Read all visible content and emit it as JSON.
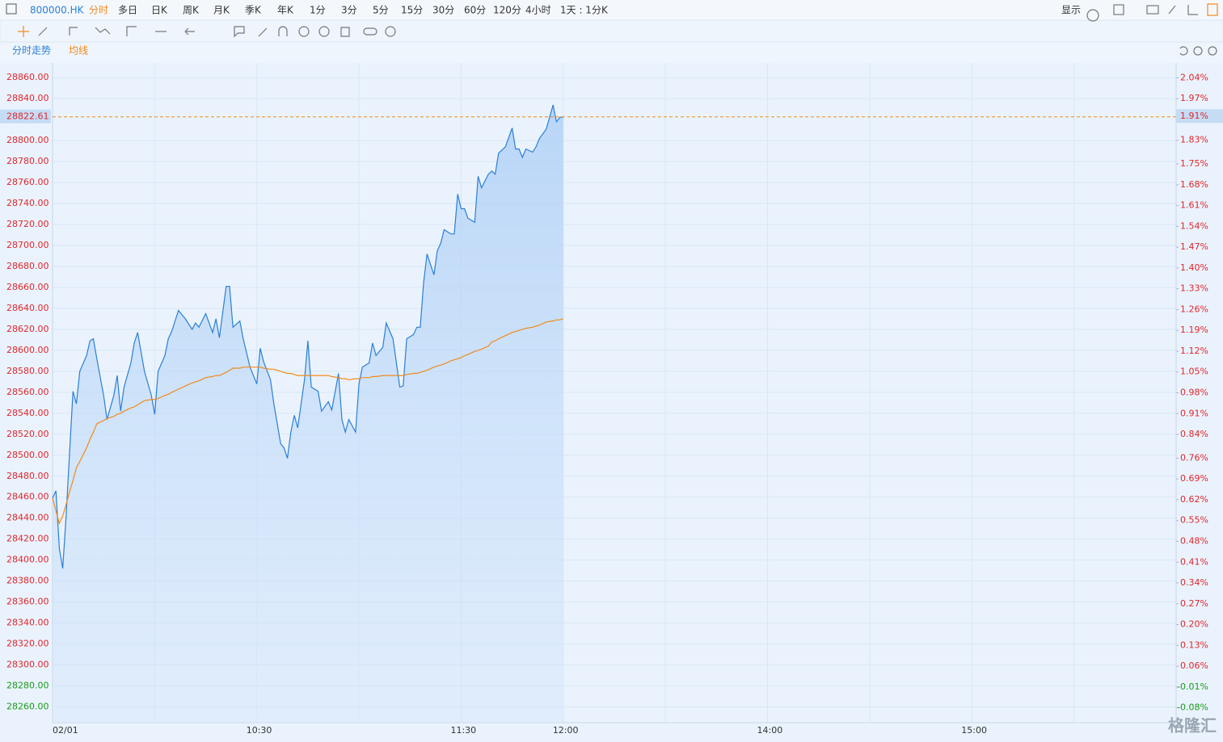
{
  "toolbar": {
    "symbol": "800000.HK",
    "periods": [
      "分时",
      "多日",
      "日K",
      "周K",
      "月K",
      "季K",
      "年K",
      "1分",
      "3分",
      "5分",
      "15分",
      "30分",
      "60分",
      "120分",
      "4小时",
      "1天 : 1分K"
    ],
    "active_color": "#f08a1c",
    "display": "显示"
  },
  "watermark": "格隆汇",
  "chart_data": {
    "type": "line",
    "x": [
      0,
      1,
      2,
      3,
      4,
      5,
      6,
      7,
      8,
      10,
      11,
      12,
      13,
      15,
      16,
      18,
      19,
      20,
      21,
      23,
      24,
      25,
      27,
      29,
      30,
      31,
      33,
      34,
      35,
      37,
      39,
      41,
      42,
      43,
      45,
      47,
      48,
      49,
      51,
      52,
      53,
      55,
      56,
      58,
      60,
      61,
      62,
      64,
      65,
      67,
      68,
      69,
      70,
      71,
      72,
      74,
      75,
      76,
      78,
      79,
      81,
      82,
      84,
      85,
      86,
      87,
      89,
      90,
      91,
      93,
      94,
      95,
      97,
      98,
      100,
      101,
      102,
      103,
      104,
      106,
      107,
      108,
      109,
      110,
      112,
      113,
      114,
      115,
      117,
      118,
      119,
      120,
      121,
      122,
      124,
      125,
      126,
      128,
      129,
      130,
      131,
      133,
      135,
      136,
      137,
      138,
      139,
      141,
      142,
      143,
      145,
      147,
      148,
      149,
      150
    ],
    "series": [
      {
        "name": "分时走势",
        "color": "#2b7fd6",
        "values": [
          28459,
          28466,
          28411,
          28392,
          28442,
          28503,
          28561,
          28549,
          28580,
          28595,
          28609,
          28611,
          28592,
          28557,
          28534,
          28557,
          28576,
          28542,
          28565,
          28588,
          28607,
          28617,
          28580,
          28557,
          28539,
          28580,
          28595,
          28611,
          28618,
          28638,
          28630,
          28620,
          28626,
          28622,
          28635,
          28617,
          28630,
          28612,
          28661,
          28661,
          28622,
          28628,
          28611,
          28584,
          28568,
          28602,
          28589,
          28572,
          28549,
          28511,
          28507,
          28497,
          28522,
          28538,
          28526,
          28572,
          28609,
          28565,
          28561,
          28542,
          28551,
          28543,
          28578,
          28534,
          28522,
          28534,
          28522,
          28568,
          28584,
          28588,
          28607,
          28595,
          28603,
          28626,
          28611,
          28588,
          28565,
          28566,
          28611,
          28615,
          28622,
          28622,
          28665,
          28692,
          28672,
          28695,
          28702,
          28715,
          28711,
          28711,
          28749,
          28735,
          28735,
          28726,
          28722,
          28766,
          28755,
          28768,
          28771,
          28768,
          28788,
          28794,
          28812,
          28792,
          28792,
          28784,
          28792,
          28789,
          28794,
          28802,
          28811,
          28834,
          28818,
          28822,
          28822.61
        ]
      },
      {
        "name": "均线",
        "color": "#f08a1c",
        "values": [
          28459,
          28447,
          28435,
          28442,
          28453,
          28465,
          28476,
          28488,
          28494,
          28507,
          28515,
          28522,
          28530,
          28533,
          28535,
          28537,
          28539,
          28540,
          28542,
          28545,
          28546,
          28548,
          28552,
          28553,
          28553,
          28554,
          28557,
          28558,
          28560,
          28563,
          28566,
          28569,
          28570,
          28571,
          28574,
          28575,
          28576,
          28576,
          28579,
          28581,
          28583,
          28583,
          28584,
          28584,
          28584,
          28584,
          28583,
          28582,
          28582,
          28580,
          28579,
          28578,
          28578,
          28577,
          28576,
          28576,
          28576,
          28576,
          28576,
          28576,
          28576,
          28575,
          28574,
          28573,
          28573,
          28572,
          28573,
          28573,
          28574,
          28574,
          28575,
          28575,
          28576,
          28576,
          28576,
          28576,
          28576,
          28576,
          28577,
          28578,
          28578,
          28579,
          28580,
          28581,
          28584,
          28585,
          28586,
          28587,
          28590,
          28591,
          28592,
          28593,
          28595,
          28596,
          28599,
          28600,
          28601,
          28604,
          28608,
          28609,
          28611,
          28614,
          28617,
          28618,
          28619,
          28620,
          28621,
          28622,
          28623,
          28624,
          28627,
          28628,
          28629,
          28629,
          28630
        ]
      }
    ],
    "xlim": [
      0,
      330
    ],
    "xticks": [
      {
        "value": 0,
        "label": "02/01"
      },
      {
        "value": 30,
        "label": null
      },
      {
        "value": 60,
        "label": "10:30"
      },
      {
        "value": 90,
        "label": null
      },
      {
        "value": 120,
        "label": "11:30"
      },
      {
        "value": 150,
        "label": "12:00"
      },
      {
        "value": 180,
        "label": null
      },
      {
        "value": 210,
        "label": "14:00"
      },
      {
        "value": 240,
        "label": null
      },
      {
        "value": 270,
        "label": "15:00"
      },
      {
        "value": 300,
        "label": null
      },
      {
        "value": 330,
        "label": null
      }
    ],
    "ylim": [
      28245,
      28874
    ],
    "yticks": [
      {
        "value": 28260,
        "label": "28260.00"
      },
      {
        "value": 28280,
        "label": "28280.00"
      },
      {
        "value": 28300,
        "label": "28300.00"
      },
      {
        "value": 28320,
        "label": "28320.00"
      },
      {
        "value": 28340,
        "label": "28340.00"
      },
      {
        "value": 28360,
        "label": "28360.00"
      },
      {
        "value": 28380,
        "label": "28380.00"
      },
      {
        "value": 28400,
        "label": "28400.00"
      },
      {
        "value": 28420,
        "label": "28420.00"
      },
      {
        "value": 28440,
        "label": "28440.00"
      },
      {
        "value": 28460,
        "label": "28460.00"
      },
      {
        "value": 28480,
        "label": "28480.00"
      },
      {
        "value": 28500,
        "label": "28500.00"
      },
      {
        "value": 28520,
        "label": "28520.00"
      },
      {
        "value": 28540,
        "label": "28540.00"
      },
      {
        "value": 28560,
        "label": "28560.00"
      },
      {
        "value": 28580,
        "label": "28580.00"
      },
      {
        "value": 28600,
        "label": "28600.00"
      },
      {
        "value": 28620,
        "label": "28620.00"
      },
      {
        "value": 28640,
        "label": "28640.00"
      },
      {
        "value": 28660,
        "label": "28660.00"
      },
      {
        "value": 28680,
        "label": "28680.00"
      },
      {
        "value": 28700,
        "label": "28700.00"
      },
      {
        "value": 28720,
        "label": "28720.00"
      },
      {
        "value": 28740,
        "label": "28740.00"
      },
      {
        "value": 28760,
        "label": "28760.00"
      },
      {
        "value": 28780,
        "label": "28780.00"
      },
      {
        "value": 28800,
        "label": "28800.00"
      },
      {
        "value": 28840,
        "label": "28840.00"
      },
      {
        "value": 28860,
        "label": "28860.00"
      }
    ],
    "y2lim": [
      -0.13,
      2.09
    ],
    "y2ticks": [
      {
        "value": -0.08,
        "label": "-0.08%"
      },
      {
        "value": -0.01,
        "label": "-0.01%"
      },
      {
        "value": 0.06,
        "label": "0.06%"
      },
      {
        "value": 0.13,
        "label": "0.13%"
      },
      {
        "value": 0.2,
        "label": "0.20%"
      },
      {
        "value": 0.27,
        "label": "0.27%"
      },
      {
        "value": 0.34,
        "label": "0.34%"
      },
      {
        "value": 0.41,
        "label": "0.41%"
      },
      {
        "value": 0.48,
        "label": "0.48%"
      },
      {
        "value": 0.55,
        "label": "0.55%"
      },
      {
        "value": 0.62,
        "label": "0.62%"
      },
      {
        "value": 0.69,
        "label": "0.69%"
      },
      {
        "value": 0.76,
        "label": "0.76%"
      },
      {
        "value": 0.84,
        "label": "0.84%"
      },
      {
        "value": 0.91,
        "label": "0.91%"
      },
      {
        "value": 0.98,
        "label": "0.98%"
      },
      {
        "value": 1.05,
        "label": "1.05%"
      },
      {
        "value": 1.12,
        "label": "1.12%"
      },
      {
        "value": 1.19,
        "label": "1.19%"
      },
      {
        "value": 1.26,
        "label": "1.26%"
      },
      {
        "value": 1.33,
        "label": "1.33%"
      },
      {
        "value": 1.4,
        "label": "1.40%"
      },
      {
        "value": 1.47,
        "label": "1.47%"
      },
      {
        "value": 1.54,
        "label": "1.54%"
      },
      {
        "value": 1.61,
        "label": "1.61%"
      },
      {
        "value": 1.68,
        "label": "1.68%"
      },
      {
        "value": 1.75,
        "label": "1.75%"
      },
      {
        "value": 1.83,
        "label": "1.83%"
      },
      {
        "value": 1.97,
        "label": "1.97%"
      },
      {
        "value": 2.04,
        "label": "2.04%"
      }
    ],
    "marker": {
      "value": 28822.61,
      "label": "28822.61",
      "pct": {
        "value": 1.91,
        "label": "1.91%"
      },
      "color": "#f08a1c"
    },
    "grid": true,
    "up_color": "#e0262b",
    "down_color": "#1a9a1a"
  }
}
